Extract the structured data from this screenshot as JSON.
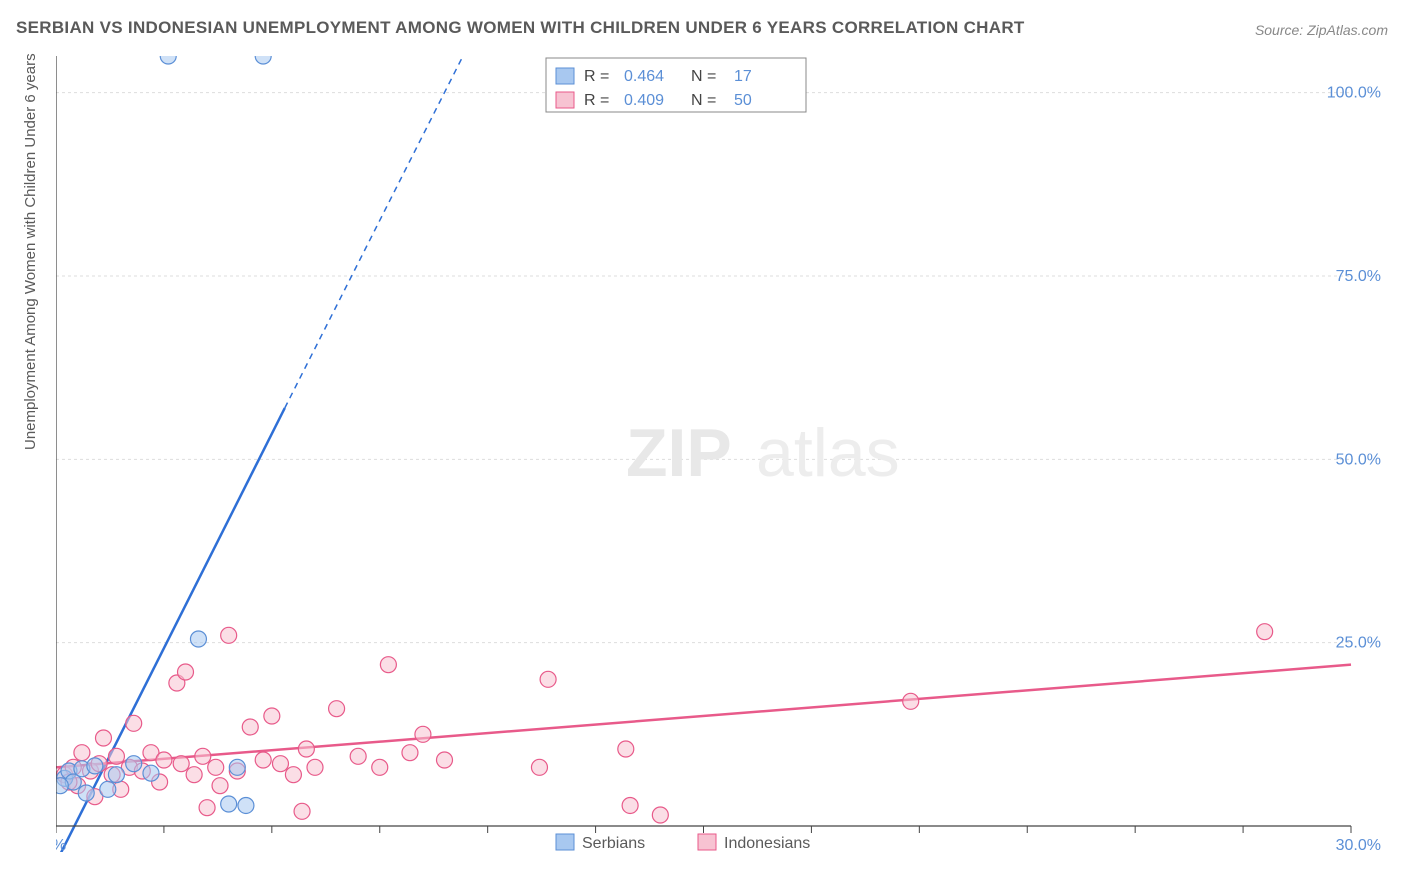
{
  "title": "SERBIAN VS INDONESIAN UNEMPLOYMENT AMONG WOMEN WITH CHILDREN UNDER 6 YEARS CORRELATION CHART",
  "source": "Source: ZipAtlas.com",
  "ylabel": "Unemployment Among Women with Children Under 6 years",
  "watermark": {
    "bold": "ZIP",
    "light": "atlas"
  },
  "chart": {
    "type": "scatter",
    "xlim": [
      0,
      30
    ],
    "ylim": [
      0,
      105
    ],
    "xtick_step": 2.5,
    "ytick_step": 25,
    "xtick_labels": {
      "0": "0.0%",
      "30": "30.0%"
    },
    "ytick_labels": {
      "25": "25.0%",
      "50": "50.0%",
      "75": "75.0%",
      "100": "100.0%"
    },
    "background_color": "#ffffff",
    "grid_color": "#dddddd",
    "axis_color": "#444444",
    "series": [
      {
        "name": "Serbians",
        "color_fill": "#a8c8f0",
        "color_stroke": "#5b8fd6",
        "marker_radius": 8,
        "marker_opacity": 0.55,
        "R": 0.464,
        "N": 17,
        "trend": {
          "x1": 0,
          "y1": -5,
          "x2_solid": 5.3,
          "y2_solid": 57,
          "x2_dash": 9.6,
          "y2_dash": 107,
          "color": "#2e6fd6"
        },
        "points": [
          [
            0.2,
            6.5
          ],
          [
            0.3,
            7.5
          ],
          [
            0.4,
            6.0
          ],
          [
            0.6,
            7.8
          ],
          [
            0.7,
            4.5
          ],
          [
            0.9,
            8.2
          ],
          [
            1.2,
            5.0
          ],
          [
            1.4,
            7.0
          ],
          [
            1.8,
            8.5
          ],
          [
            2.2,
            7.2
          ],
          [
            2.6,
            105
          ],
          [
            3.3,
            25.5
          ],
          [
            4.0,
            3.0
          ],
          [
            4.2,
            8.0
          ],
          [
            4.4,
            2.8
          ],
          [
            4.8,
            105
          ],
          [
            0.1,
            5.5
          ]
        ]
      },
      {
        "name": "Indonesians",
        "color_fill": "#f7c3d2",
        "color_stroke": "#e85a8a",
        "marker_radius": 8,
        "marker_opacity": 0.55,
        "R": 0.409,
        "N": 50,
        "trend": {
          "x1": 0,
          "y1": 8,
          "x2_solid": 30,
          "y2_solid": 22,
          "color": "#e85a8a"
        },
        "points": [
          [
            0.2,
            7.0
          ],
          [
            0.4,
            8.0
          ],
          [
            0.5,
            5.5
          ],
          [
            0.6,
            10.0
          ],
          [
            0.8,
            7.5
          ],
          [
            0.9,
            4.0
          ],
          [
            1.0,
            8.5
          ],
          [
            1.1,
            12.0
          ],
          [
            1.3,
            7.0
          ],
          [
            1.4,
            9.5
          ],
          [
            1.5,
            5.0
          ],
          [
            1.7,
            8.0
          ],
          [
            1.8,
            14.0
          ],
          [
            2.0,
            7.5
          ],
          [
            2.2,
            10.0
          ],
          [
            2.4,
            6.0
          ],
          [
            2.5,
            9.0
          ],
          [
            2.8,
            19.5
          ],
          [
            2.9,
            8.5
          ],
          [
            3.0,
            21.0
          ],
          [
            3.2,
            7.0
          ],
          [
            3.4,
            9.5
          ],
          [
            3.5,
            2.5
          ],
          [
            3.7,
            8.0
          ],
          [
            3.8,
            5.5
          ],
          [
            4.0,
            26.0
          ],
          [
            4.2,
            7.5
          ],
          [
            4.5,
            13.5
          ],
          [
            4.8,
            9.0
          ],
          [
            5.0,
            15.0
          ],
          [
            5.2,
            8.5
          ],
          [
            5.5,
            7.0
          ],
          [
            5.7,
            2.0
          ],
          [
            5.8,
            10.5
          ],
          [
            6.0,
            8.0
          ],
          [
            6.5,
            16.0
          ],
          [
            7.0,
            9.5
          ],
          [
            7.5,
            8.0
          ],
          [
            7.7,
            22.0
          ],
          [
            8.2,
            10.0
          ],
          [
            8.5,
            12.5
          ],
          [
            9.0,
            9.0
          ],
          [
            11.2,
            8.0
          ],
          [
            11.4,
            20.0
          ],
          [
            13.2,
            10.5
          ],
          [
            13.3,
            2.8
          ],
          [
            14.0,
            1.5
          ],
          [
            19.8,
            17.0
          ],
          [
            28.0,
            26.5
          ],
          [
            0.3,
            6.0
          ]
        ]
      }
    ],
    "legend_bottom": [
      {
        "label": "Serbians",
        "swatch": "blue"
      },
      {
        "label": "Indonesians",
        "swatch": "pink"
      }
    ]
  }
}
